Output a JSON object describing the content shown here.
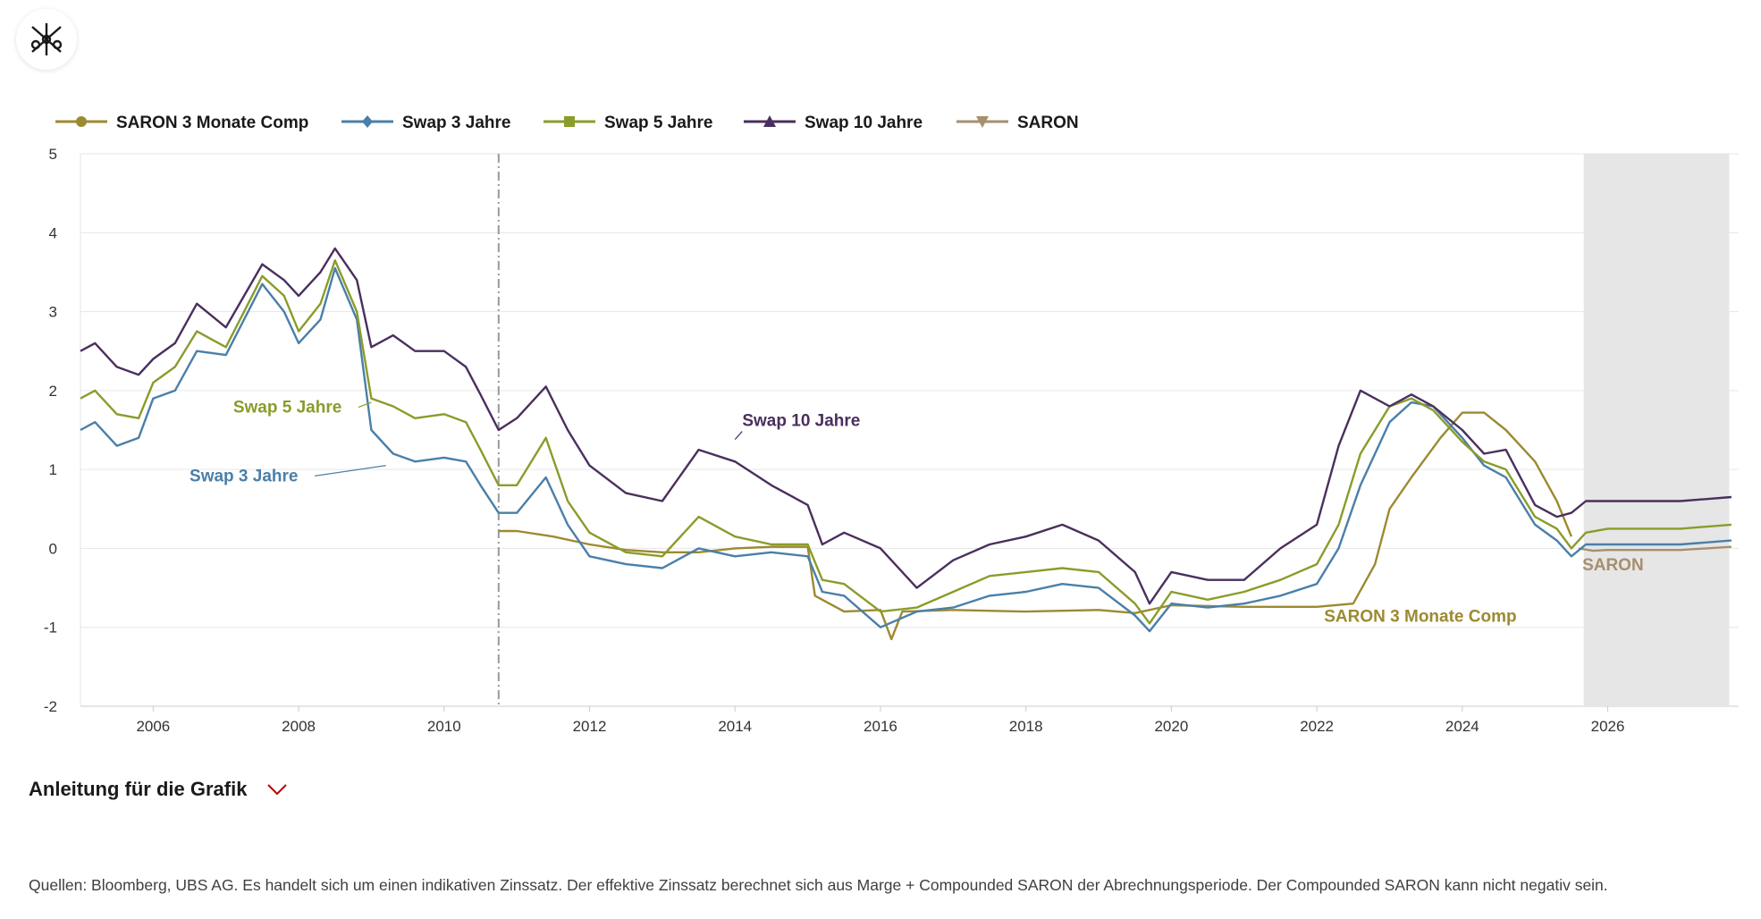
{
  "logo": {
    "icon": "ubs-keys-icon"
  },
  "colors": {
    "saron3m": "#9c8a31",
    "swap3": "#4a7fa8",
    "swap5": "#8a9c2a",
    "swap10": "#4a2f5e",
    "saron": "#a68f6c",
    "forecast_band": "#e6e6e6",
    "grid": "#e6e6e6",
    "divider": "#999999",
    "chevron": "#c00000"
  },
  "instructions": {
    "label": "Anleitung für die Grafik",
    "icon": "chevron-down-icon"
  },
  "sources": "Quellen: Bloomberg, UBS AG. Es handelt sich um einen indikativen Zinssatz. Der effektive Zinssatz berechnet sich aus Marge + Compounded SARON der Abrechnungsperiode. Der Compounded SARON kann nicht negativ sein.",
  "chart_data": {
    "type": "line",
    "xlabel": "",
    "ylabel": "",
    "xlim": [
      2005,
      2027.8
    ],
    "ylim": [
      -2,
      5
    ],
    "x_ticks": [
      "2006",
      "2008",
      "2010",
      "2012",
      "2014",
      "2016",
      "2018",
      "2020",
      "2022",
      "2024",
      "2026"
    ],
    "y_ticks": [
      "5",
      "4",
      "3",
      "2",
      "1",
      "0",
      "-1",
      "-2"
    ],
    "grid": "horizontal",
    "legend_position": "top-left",
    "vertical_marker_x": 2010.75,
    "forecast_region": [
      2025.67,
      2027.67
    ],
    "series": [
      {
        "name": "SARON 3 Monate Comp",
        "color_key": "saron3m",
        "marker": "circle",
        "annotation": "SARON 3 Monate Comp",
        "points": [
          [
            2010.75,
            0.22
          ],
          [
            2011,
            0.22
          ],
          [
            2011.5,
            0.15
          ],
          [
            2012,
            0.05
          ],
          [
            2012.5,
            -0.02
          ],
          [
            2013,
            -0.05
          ],
          [
            2013.5,
            -0.05
          ],
          [
            2014,
            0.0
          ],
          [
            2014.5,
            0.02
          ],
          [
            2015,
            0.02
          ],
          [
            2015.1,
            -0.6
          ],
          [
            2015.5,
            -0.8
          ],
          [
            2016,
            -0.78
          ],
          [
            2016.15,
            -1.15
          ],
          [
            2016.3,
            -0.8
          ],
          [
            2017,
            -0.78
          ],
          [
            2018,
            -0.8
          ],
          [
            2019,
            -0.78
          ],
          [
            2019.5,
            -0.82
          ],
          [
            2020,
            -0.72
          ],
          [
            2021,
            -0.74
          ],
          [
            2022,
            -0.74
          ],
          [
            2022.5,
            -0.7
          ],
          [
            2022.8,
            -0.2
          ],
          [
            2023,
            0.5
          ],
          [
            2023.3,
            0.9
          ],
          [
            2023.7,
            1.4
          ],
          [
            2024,
            1.72
          ],
          [
            2024.3,
            1.72
          ],
          [
            2024.6,
            1.5
          ],
          [
            2025,
            1.1
          ],
          [
            2025.3,
            0.6
          ],
          [
            2025.5,
            0.15
          ]
        ]
      },
      {
        "name": "Swap 3 Jahre",
        "color_key": "swap3",
        "marker": "diamond",
        "annotation": "Swap 3 Jahre",
        "points": [
          [
            2005,
            1.5
          ],
          [
            2005.2,
            1.6
          ],
          [
            2005.5,
            1.3
          ],
          [
            2005.8,
            1.4
          ],
          [
            2006,
            1.9
          ],
          [
            2006.3,
            2.0
          ],
          [
            2006.6,
            2.5
          ],
          [
            2007,
            2.45
          ],
          [
            2007.5,
            3.35
          ],
          [
            2007.8,
            3.0
          ],
          [
            2008,
            2.6
          ],
          [
            2008.3,
            2.9
          ],
          [
            2008.5,
            3.55
          ],
          [
            2008.8,
            2.9
          ],
          [
            2009,
            1.5
          ],
          [
            2009.3,
            1.2
          ],
          [
            2009.6,
            1.1
          ],
          [
            2010,
            1.15
          ],
          [
            2010.3,
            1.1
          ],
          [
            2010.5,
            0.8
          ],
          [
            2010.75,
            0.45
          ],
          [
            2011,
            0.45
          ],
          [
            2011.4,
            0.9
          ],
          [
            2011.7,
            0.3
          ],
          [
            2012,
            -0.1
          ],
          [
            2012.5,
            -0.2
          ],
          [
            2013,
            -0.25
          ],
          [
            2013.5,
            0.0
          ],
          [
            2014,
            -0.1
          ],
          [
            2014.5,
            -0.05
          ],
          [
            2015,
            -0.1
          ],
          [
            2015.2,
            -0.55
          ],
          [
            2015.5,
            -0.6
          ],
          [
            2016,
            -1.0
          ],
          [
            2016.5,
            -0.8
          ],
          [
            2017,
            -0.75
          ],
          [
            2017.5,
            -0.6
          ],
          [
            2018,
            -0.55
          ],
          [
            2018.5,
            -0.45
          ],
          [
            2019,
            -0.5
          ],
          [
            2019.5,
            -0.85
          ],
          [
            2019.7,
            -1.05
          ],
          [
            2020,
            -0.7
          ],
          [
            2020.5,
            -0.75
          ],
          [
            2021,
            -0.7
          ],
          [
            2021.5,
            -0.6
          ],
          [
            2022,
            -0.45
          ],
          [
            2022.3,
            0.0
          ],
          [
            2022.6,
            0.8
          ],
          [
            2023,
            1.6
          ],
          [
            2023.3,
            1.85
          ],
          [
            2023.6,
            1.8
          ],
          [
            2024,
            1.4
          ],
          [
            2024.3,
            1.05
          ],
          [
            2024.6,
            0.9
          ],
          [
            2025,
            0.3
          ],
          [
            2025.3,
            0.1
          ],
          [
            2025.5,
            -0.1
          ],
          [
            2025.7,
            0.05
          ],
          [
            2026,
            0.05
          ],
          [
            2027,
            0.05
          ],
          [
            2027.7,
            0.1
          ]
        ]
      },
      {
        "name": "Swap 5 Jahre",
        "color_key": "swap5",
        "marker": "square",
        "annotation": "Swap 5 Jahre",
        "points": [
          [
            2005,
            1.9
          ],
          [
            2005.2,
            2.0
          ],
          [
            2005.5,
            1.7
          ],
          [
            2005.8,
            1.65
          ],
          [
            2006,
            2.1
          ],
          [
            2006.3,
            2.3
          ],
          [
            2006.6,
            2.75
          ],
          [
            2007,
            2.55
          ],
          [
            2007.5,
            3.45
          ],
          [
            2007.8,
            3.2
          ],
          [
            2008,
            2.75
          ],
          [
            2008.3,
            3.1
          ],
          [
            2008.5,
            3.65
          ],
          [
            2008.8,
            3.0
          ],
          [
            2009,
            1.9
          ],
          [
            2009.3,
            1.8
          ],
          [
            2009.6,
            1.65
          ],
          [
            2010,
            1.7
          ],
          [
            2010.3,
            1.6
          ],
          [
            2010.5,
            1.25
          ],
          [
            2010.75,
            0.8
          ],
          [
            2011,
            0.8
          ],
          [
            2011.4,
            1.4
          ],
          [
            2011.7,
            0.6
          ],
          [
            2012,
            0.2
          ],
          [
            2012.5,
            -0.05
          ],
          [
            2013,
            -0.1
          ],
          [
            2013.5,
            0.4
          ],
          [
            2014,
            0.15
          ],
          [
            2014.5,
            0.05
          ],
          [
            2015,
            0.05
          ],
          [
            2015.2,
            -0.4
          ],
          [
            2015.5,
            -0.45
          ],
          [
            2016,
            -0.8
          ],
          [
            2016.5,
            -0.75
          ],
          [
            2017,
            -0.55
          ],
          [
            2017.5,
            -0.35
          ],
          [
            2018,
            -0.3
          ],
          [
            2018.5,
            -0.25
          ],
          [
            2019,
            -0.3
          ],
          [
            2019.5,
            -0.7
          ],
          [
            2019.7,
            -0.95
          ],
          [
            2020,
            -0.55
          ],
          [
            2020.5,
            -0.65
          ],
          [
            2021,
            -0.55
          ],
          [
            2021.5,
            -0.4
          ],
          [
            2022,
            -0.2
          ],
          [
            2022.3,
            0.3
          ],
          [
            2022.6,
            1.2
          ],
          [
            2023,
            1.8
          ],
          [
            2023.3,
            1.9
          ],
          [
            2023.6,
            1.75
          ],
          [
            2024,
            1.35
          ],
          [
            2024.3,
            1.1
          ],
          [
            2024.6,
            1.0
          ],
          [
            2025,
            0.4
          ],
          [
            2025.3,
            0.25
          ],
          [
            2025.5,
            0.0
          ],
          [
            2025.7,
            0.2
          ],
          [
            2026,
            0.25
          ],
          [
            2027,
            0.25
          ],
          [
            2027.7,
            0.3
          ]
        ]
      },
      {
        "name": "Swap 10 Jahre",
        "color_key": "swap10",
        "marker": "triangle",
        "annotation": "Swap 10 Jahre",
        "points": [
          [
            2005,
            2.5
          ],
          [
            2005.2,
            2.6
          ],
          [
            2005.5,
            2.3
          ],
          [
            2005.8,
            2.2
          ],
          [
            2006,
            2.4
          ],
          [
            2006.3,
            2.6
          ],
          [
            2006.6,
            3.1
          ],
          [
            2007,
            2.8
          ],
          [
            2007.5,
            3.6
          ],
          [
            2007.8,
            3.4
          ],
          [
            2008,
            3.2
          ],
          [
            2008.3,
            3.5
          ],
          [
            2008.5,
            3.8
          ],
          [
            2008.8,
            3.4
          ],
          [
            2009,
            2.55
          ],
          [
            2009.3,
            2.7
          ],
          [
            2009.6,
            2.5
          ],
          [
            2010,
            2.5
          ],
          [
            2010.3,
            2.3
          ],
          [
            2010.5,
            1.95
          ],
          [
            2010.75,
            1.5
          ],
          [
            2011,
            1.65
          ],
          [
            2011.4,
            2.05
          ],
          [
            2011.7,
            1.5
          ],
          [
            2012,
            1.05
          ],
          [
            2012.5,
            0.7
          ],
          [
            2013,
            0.6
          ],
          [
            2013.5,
            1.25
          ],
          [
            2014,
            1.1
          ],
          [
            2014.5,
            0.8
          ],
          [
            2015,
            0.55
          ],
          [
            2015.2,
            0.05
          ],
          [
            2015.5,
            0.2
          ],
          [
            2016,
            0.0
          ],
          [
            2016.5,
            -0.5
          ],
          [
            2017,
            -0.15
          ],
          [
            2017.5,
            0.05
          ],
          [
            2018,
            0.15
          ],
          [
            2018.5,
            0.3
          ],
          [
            2019,
            0.1
          ],
          [
            2019.5,
            -0.3
          ],
          [
            2019.7,
            -0.7
          ],
          [
            2020,
            -0.3
          ],
          [
            2020.5,
            -0.4
          ],
          [
            2021,
            -0.4
          ],
          [
            2021.5,
            0.0
          ],
          [
            2022,
            0.3
          ],
          [
            2022.3,
            1.3
          ],
          [
            2022.6,
            2.0
          ],
          [
            2023,
            1.8
          ],
          [
            2023.3,
            1.95
          ],
          [
            2023.6,
            1.8
          ],
          [
            2024,
            1.5
          ],
          [
            2024.3,
            1.2
          ],
          [
            2024.6,
            1.25
          ],
          [
            2025,
            0.55
          ],
          [
            2025.3,
            0.4
          ],
          [
            2025.5,
            0.45
          ],
          [
            2025.7,
            0.6
          ],
          [
            2026,
            0.6
          ],
          [
            2027,
            0.6
          ],
          [
            2027.7,
            0.65
          ]
        ]
      },
      {
        "name": "SARON",
        "color_key": "saron",
        "marker": "triangle-down",
        "annotation": "SARON",
        "points": [
          [
            2025.6,
            0.0
          ],
          [
            2025.8,
            -0.03
          ],
          [
            2026,
            -0.02
          ],
          [
            2027,
            -0.02
          ],
          [
            2027.7,
            0.02
          ]
        ]
      }
    ]
  },
  "legend": [
    {
      "label": "SARON 3 Monate Comp",
      "color_key": "saron3m",
      "marker": "circle"
    },
    {
      "label": "Swap 3 Jahre",
      "color_key": "swap3",
      "marker": "diamond"
    },
    {
      "label": "Swap 5 Jahre",
      "color_key": "swap5",
      "marker": "square"
    },
    {
      "label": "Swap 10 Jahre",
      "color_key": "swap10",
      "marker": "triangle"
    },
    {
      "label": "SARON",
      "color_key": "saron",
      "marker": "triangle-down"
    }
  ]
}
